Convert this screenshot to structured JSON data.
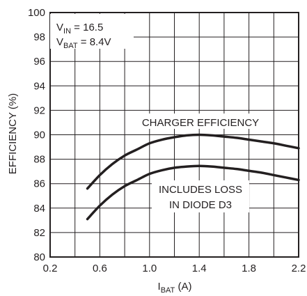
{
  "chart_data": {
    "type": "line",
    "title": "",
    "xlabel": {
      "main": "I",
      "sub": "BAT",
      "rest": " (A)"
    },
    "ylabel": "EFFICIENCY (%)",
    "xlim": [
      0.2,
      2.2
    ],
    "ylim": [
      80,
      100
    ],
    "xticks": [
      "0.2",
      "0.6",
      "1.0",
      "1.4",
      "1.8",
      "2.2"
    ],
    "xtick_values": [
      0.2,
      0.6,
      1.0,
      1.4,
      1.8,
      2.2
    ],
    "yticks": [
      "80",
      "82",
      "84",
      "86",
      "88",
      "90",
      "92",
      "94",
      "96",
      "98",
      "100"
    ],
    "ytick_values": [
      80,
      82,
      84,
      86,
      88,
      90,
      92,
      94,
      96,
      98,
      100
    ],
    "grid_x_step": 0.2,
    "grid_y_step": 2,
    "grid": true,
    "conditions": [
      {
        "main": "V",
        "sub": "IN",
        "rest": " = 16.5"
      },
      {
        "main": "V",
        "sub": "BAT",
        "rest": " = 8.4V"
      }
    ],
    "annotations": {
      "charger": "CHARGER EFFICIENCY",
      "diode_line1": "INCLUDES LOSS",
      "diode_line2": "IN DIODE D3"
    },
    "series": [
      {
        "x": [
          0.5,
          0.6,
          0.7,
          0.8,
          0.9,
          1.0,
          1.1,
          1.2,
          1.3,
          1.4,
          1.5,
          1.6,
          1.7,
          1.8,
          1.9,
          2.0,
          2.1,
          2.2
        ],
        "values": [
          85.6,
          86.7,
          87.6,
          88.3,
          88.8,
          89.3,
          89.6,
          89.8,
          89.95,
          90.0,
          89.95,
          89.85,
          89.75,
          89.6,
          89.45,
          89.3,
          89.1,
          88.9
        ]
      },
      {
        "x": [
          0.5,
          0.6,
          0.7,
          0.8,
          0.9,
          1.0,
          1.1,
          1.2,
          1.3,
          1.4,
          1.5,
          1.6,
          1.7,
          1.8,
          1.9,
          2.0,
          2.1,
          2.2
        ],
        "values": [
          83.1,
          84.2,
          85.1,
          85.8,
          86.3,
          86.8,
          87.1,
          87.3,
          87.4,
          87.45,
          87.4,
          87.3,
          87.2,
          87.05,
          86.9,
          86.7,
          86.5,
          86.3
        ]
      }
    ]
  }
}
